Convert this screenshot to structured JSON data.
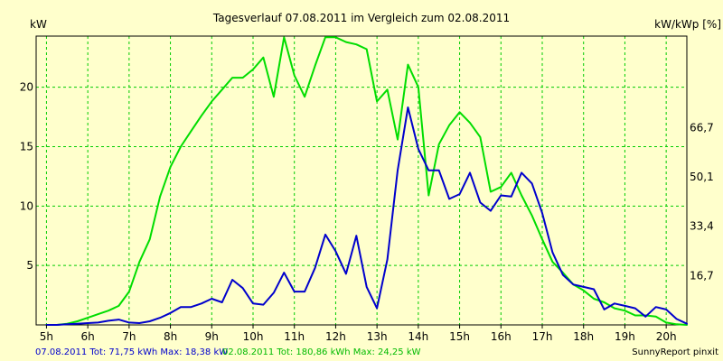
{
  "window": {
    "background": "#ffffcc"
  },
  "chart_data": {
    "type": "line",
    "title": "Tagesverlauf 07.08.2011 im Vergleich zum 02.08.2011",
    "ylabel_left": "kW",
    "ylabel_right": "kW/kWp [%]",
    "watermark": "SunnyReport pinxit",
    "grid": true,
    "xlim": [
      4.75,
      20.5
    ],
    "ylim": [
      0,
      24.3
    ],
    "x_ticks": [
      5,
      6,
      7,
      8,
      9,
      10,
      11,
      12,
      13,
      14,
      15,
      16,
      17,
      18,
      19,
      20
    ],
    "x_tick_labels": [
      "5h",
      "6h",
      "7h",
      "8h",
      "9h",
      "10h",
      "11h",
      "12h",
      "13h",
      "14h",
      "15h",
      "16h",
      "17h",
      "18h",
      "19h",
      "20h"
    ],
    "y_ticks_left": [
      5,
      10,
      15,
      20
    ],
    "y_tick_labels_left": [
      "5",
      "10",
      "15",
      "20"
    ],
    "y_ticks_right": [
      4.15,
      8.3,
      12.45,
      16.6
    ],
    "y_tick_labels_right": [
      "16,7",
      "33,4",
      "50,1",
      "66,7"
    ],
    "series": [
      {
        "name": "07.08.2011",
        "color": "#0000cc",
        "legend": "07.08.2011 Tot: 71,75 kWh Max: 18,38 kW",
        "x": [
          5.0,
          5.25,
          5.5,
          5.75,
          6.0,
          6.25,
          6.5,
          6.75,
          7.0,
          7.25,
          7.5,
          7.75,
          8.0,
          8.25,
          8.5,
          8.75,
          9.0,
          9.25,
          9.5,
          9.75,
          10.0,
          10.25,
          10.5,
          10.75,
          11.0,
          11.25,
          11.5,
          11.75,
          12.0,
          12.25,
          12.5,
          12.75,
          13.0,
          13.25,
          13.5,
          13.75,
          14.0,
          14.25,
          14.5,
          14.75,
          15.0,
          15.25,
          15.5,
          15.75,
          16.0,
          16.25,
          16.5,
          16.75,
          17.0,
          17.25,
          17.5,
          17.75,
          18.0,
          18.25,
          18.5,
          18.75,
          19.0,
          19.25,
          19.5,
          19.75,
          20.0,
          20.25,
          20.5
        ],
        "y": [
          0,
          0,
          0.05,
          0.1,
          0.15,
          0.2,
          0.35,
          0.45,
          0.2,
          0.15,
          0.3,
          0.6,
          1.0,
          1.5,
          1.5,
          1.8,
          2.2,
          1.9,
          3.8,
          3.1,
          1.8,
          1.7,
          2.7,
          4.4,
          2.8,
          2.8,
          4.8,
          7.6,
          6.2,
          4.3,
          7.5,
          3.2,
          1.4,
          5.5,
          13.0,
          18.3,
          14.8,
          13.0,
          13.0,
          10.6,
          11.0,
          12.8,
          10.3,
          9.6,
          10.9,
          10.8,
          12.8,
          11.9,
          9.4,
          6.1,
          4.2,
          3.4,
          3.2,
          3.0,
          1.3,
          1.8,
          1.6,
          1.4,
          0.7,
          1.5,
          1.3,
          0.5,
          0.1
        ]
      },
      {
        "name": "02.08.2011",
        "color": "#00dd00",
        "legend": "02.08.2011 Tot: 180,86 kWh Max: 24,25 kW",
        "x": [
          5.0,
          5.25,
          5.5,
          5.75,
          6.0,
          6.25,
          6.5,
          6.75,
          7.0,
          7.25,
          7.5,
          7.75,
          8.0,
          8.25,
          8.5,
          8.75,
          9.0,
          9.25,
          9.5,
          9.75,
          10.0,
          10.25,
          10.5,
          10.75,
          11.0,
          11.25,
          11.5,
          11.75,
          12.0,
          12.25,
          12.5,
          12.75,
          13.0,
          13.25,
          13.5,
          13.75,
          14.0,
          14.25,
          14.5,
          14.75,
          15.0,
          15.25,
          15.5,
          15.75,
          16.0,
          16.25,
          16.5,
          16.75,
          17.0,
          17.25,
          17.5,
          17.75,
          18.0,
          18.25,
          18.5,
          18.75,
          19.0,
          19.25,
          19.5,
          19.75,
          20.0,
          20.25,
          20.5
        ],
        "y": [
          0,
          0,
          0.1,
          0.3,
          0.6,
          0.9,
          1.2,
          1.6,
          2.8,
          5.3,
          7.2,
          10.8,
          13.3,
          15.0,
          16.3,
          17.6,
          18.8,
          19.8,
          20.8,
          20.8,
          21.5,
          22.5,
          19.2,
          24.2,
          21.0,
          19.2,
          21.8,
          24.2,
          24.2,
          23.8,
          23.6,
          23.2,
          18.8,
          19.8,
          15.6,
          21.9,
          20.0,
          10.9,
          15.2,
          16.8,
          17.9,
          17.0,
          15.8,
          11.2,
          11.6,
          12.8,
          10.9,
          9.2,
          7.2,
          5.3,
          4.4,
          3.4,
          2.9,
          2.2,
          1.9,
          1.4,
          1.2,
          0.8,
          0.8,
          0.7,
          0.2,
          0.05,
          0
        ]
      }
    ]
  }
}
